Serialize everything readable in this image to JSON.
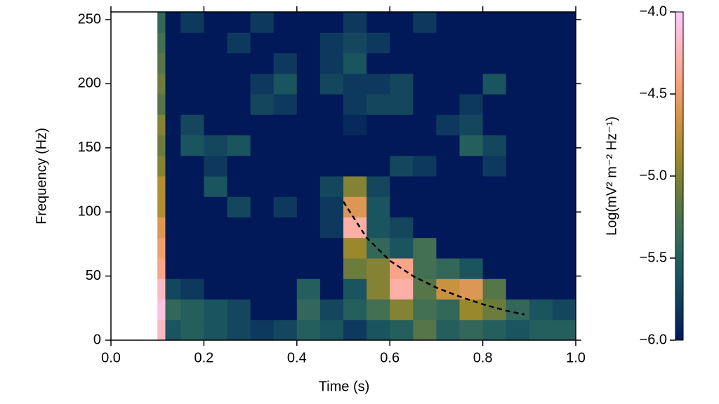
{
  "chart_data": {
    "type": "heatmap",
    "x_label": "Time (s)",
    "y_label": "Frequency (Hz)",
    "colorbar_label": "Log(mV² m⁻² Hz⁻¹)",
    "xbins": [
      0.1,
      0.117,
      0.15,
      0.2,
      0.25,
      0.3,
      0.35,
      0.4,
      0.45,
      0.5,
      0.55,
      0.6,
      0.65,
      0.7,
      0.75,
      0.8,
      0.85,
      0.9,
      0.95,
      1.0
    ],
    "ybins": [
      0,
      16,
      32,
      48,
      64,
      80,
      96,
      112,
      128,
      144,
      160,
      176,
      192,
      208,
      224,
      240,
      256
    ],
    "z": [
      [
        -4.2,
        -5.6,
        -5.5,
        -5.6,
        -5.7,
        -5.8,
        -5.7,
        -5.5,
        -5.6,
        -5.8,
        -5.6,
        -5.5,
        -5.2,
        -5.5,
        -5.4,
        -5.5,
        -5.6,
        -5.5,
        -5.5
      ],
      [
        -4.1,
        -5.4,
        -5.5,
        -5.6,
        -5.7,
        -6,
        -6,
        -5.4,
        -5.7,
        -5.5,
        -5.3,
        -5.0,
        -5.3,
        -5.4,
        -4.9,
        -5.1,
        -5.4,
        -5.6,
        -5.7
      ],
      [
        -4.2,
        -5.7,
        -5.8,
        -6,
        -6,
        -6,
        -6,
        -5.5,
        -6,
        -5.6,
        -5.0,
        -4.3,
        -5.2,
        -4.7,
        -4.6,
        -5.2,
        -6,
        -6,
        -6
      ],
      [
        -4.4,
        -6,
        -6,
        -6,
        -6,
        -6,
        -6,
        -6,
        -6,
        -5.1,
        -5.0,
        -4.4,
        -5.3,
        -5.4,
        -5.6,
        -6,
        -6,
        -6,
        -6
      ],
      [
        -4.5,
        -6,
        -6,
        -6,
        -6,
        -6,
        -6,
        -6,
        -6,
        -4.9,
        -5.4,
        -5.6,
        -5.3,
        -6,
        -6,
        -6,
        -6,
        -6,
        -6
      ],
      [
        -4.6,
        -6,
        -6,
        -6,
        -6,
        -6,
        -6,
        -6,
        -5.8,
        -4.3,
        -5.6,
        -5.7,
        -6,
        -6,
        -6,
        -6,
        -6,
        -6,
        -6
      ],
      [
        -4.8,
        -6,
        -6,
        -6,
        -5.7,
        -6,
        -5.8,
        -6,
        -5.8,
        -4.6,
        -5.6,
        -6,
        -6,
        -6,
        -6,
        -6,
        -6,
        -6,
        -6
      ],
      [
        -4.8,
        -6,
        -6,
        -5.6,
        -6,
        -6,
        -6,
        -6,
        -5.7,
        -5.0,
        -5.7,
        -6,
        -6,
        -6,
        -6,
        -6,
        -6,
        -6,
        -6
      ],
      [
        -5.0,
        -6,
        -6,
        -5.8,
        -6,
        -6,
        -6,
        -6,
        -6,
        -6,
        -6,
        -5.7,
        -5.8,
        -6,
        -6,
        -5.8,
        -6,
        -6,
        -6
      ],
      [
        -5.1,
        -6,
        -5.6,
        -5.7,
        -5.6,
        -6,
        -6,
        -6,
        -6,
        -6,
        -6,
        -6,
        -6,
        -6,
        -5.5,
        -5.7,
        -6,
        -6,
        -6
      ],
      [
        -5.0,
        -6,
        -5.7,
        -6,
        -6,
        -6,
        -6,
        -6,
        -6,
        -5.9,
        -6,
        -6,
        -6,
        -5.8,
        -5.7,
        -6,
        -6,
        -6,
        -6
      ],
      [
        -5.2,
        -6,
        -6,
        -6,
        -6,
        -5.7,
        -5.8,
        -6,
        -6,
        -5.8,
        -5.7,
        -5.7,
        -6,
        -6,
        -5.8,
        -6,
        -6,
        -6,
        -6
      ],
      [
        -5.1,
        -6,
        -6,
        -6,
        -6,
        -5.8,
        -5.6,
        -6,
        -5.7,
        -5.8,
        -5.8,
        -5.7,
        -6,
        -6,
        -6,
        -5.6,
        -6,
        -6,
        -6
      ],
      [
        -5.2,
        -6,
        -6,
        -6,
        -6,
        -6,
        -5.8,
        -6,
        -5.8,
        -5.6,
        -6,
        -6,
        -6,
        -6,
        -6,
        -6,
        -6,
        -6,
        -6
      ],
      [
        -5.3,
        -6,
        -6,
        -6,
        -5.8,
        -6,
        -6,
        -6,
        -5.8,
        -5.7,
        -5.8,
        -6,
        -6,
        -6,
        -6,
        -6,
        -6,
        -6,
        -6
      ],
      [
        -5.4,
        -6,
        -5.8,
        -6,
        -6,
        -5.8,
        -6,
        -6,
        -6,
        -5.8,
        -6,
        -6,
        -5.8,
        -6,
        -6,
        -6,
        -6,
        -6,
        -6
      ]
    ],
    "curve": {
      "x": [
        0.5,
        0.55,
        0.6,
        0.65,
        0.7,
        0.75,
        0.8,
        0.85,
        0.89
      ],
      "y": [
        108,
        80,
        62,
        50,
        41,
        34,
        28,
        23,
        20
      ],
      "color": "#000000",
      "dashed": true
    },
    "xlim": [
      0,
      1
    ],
    "ylim": [
      0,
      256
    ],
    "zlim": [
      -6,
      -4
    ],
    "xticks": [
      {
        "value": 0,
        "label": "0.0"
      },
      0.2,
      0.4,
      0.6,
      0.8,
      {
        "value": 1,
        "label": "1.0"
      }
    ],
    "yticks": [
      0,
      50,
      100,
      150,
      200,
      250
    ],
    "zticks": [
      {
        "value": -6,
        "label": "−6.0"
      },
      {
        "value": -5.5,
        "label": "−5.5"
      },
      {
        "value": -5,
        "label": "−5.0"
      },
      {
        "value": -4.5,
        "label": "−4.5"
      },
      {
        "value": -4,
        "label": "−4.0"
      }
    ],
    "colormap": [
      "#011959",
      "#0f3d5e",
      "#1d5a5f",
      "#3c6d56",
      "#687b3e",
      "#9d892b",
      "#d29343",
      "#f8a17b",
      "#fdb7bc",
      "#fccbfd"
    ]
  }
}
